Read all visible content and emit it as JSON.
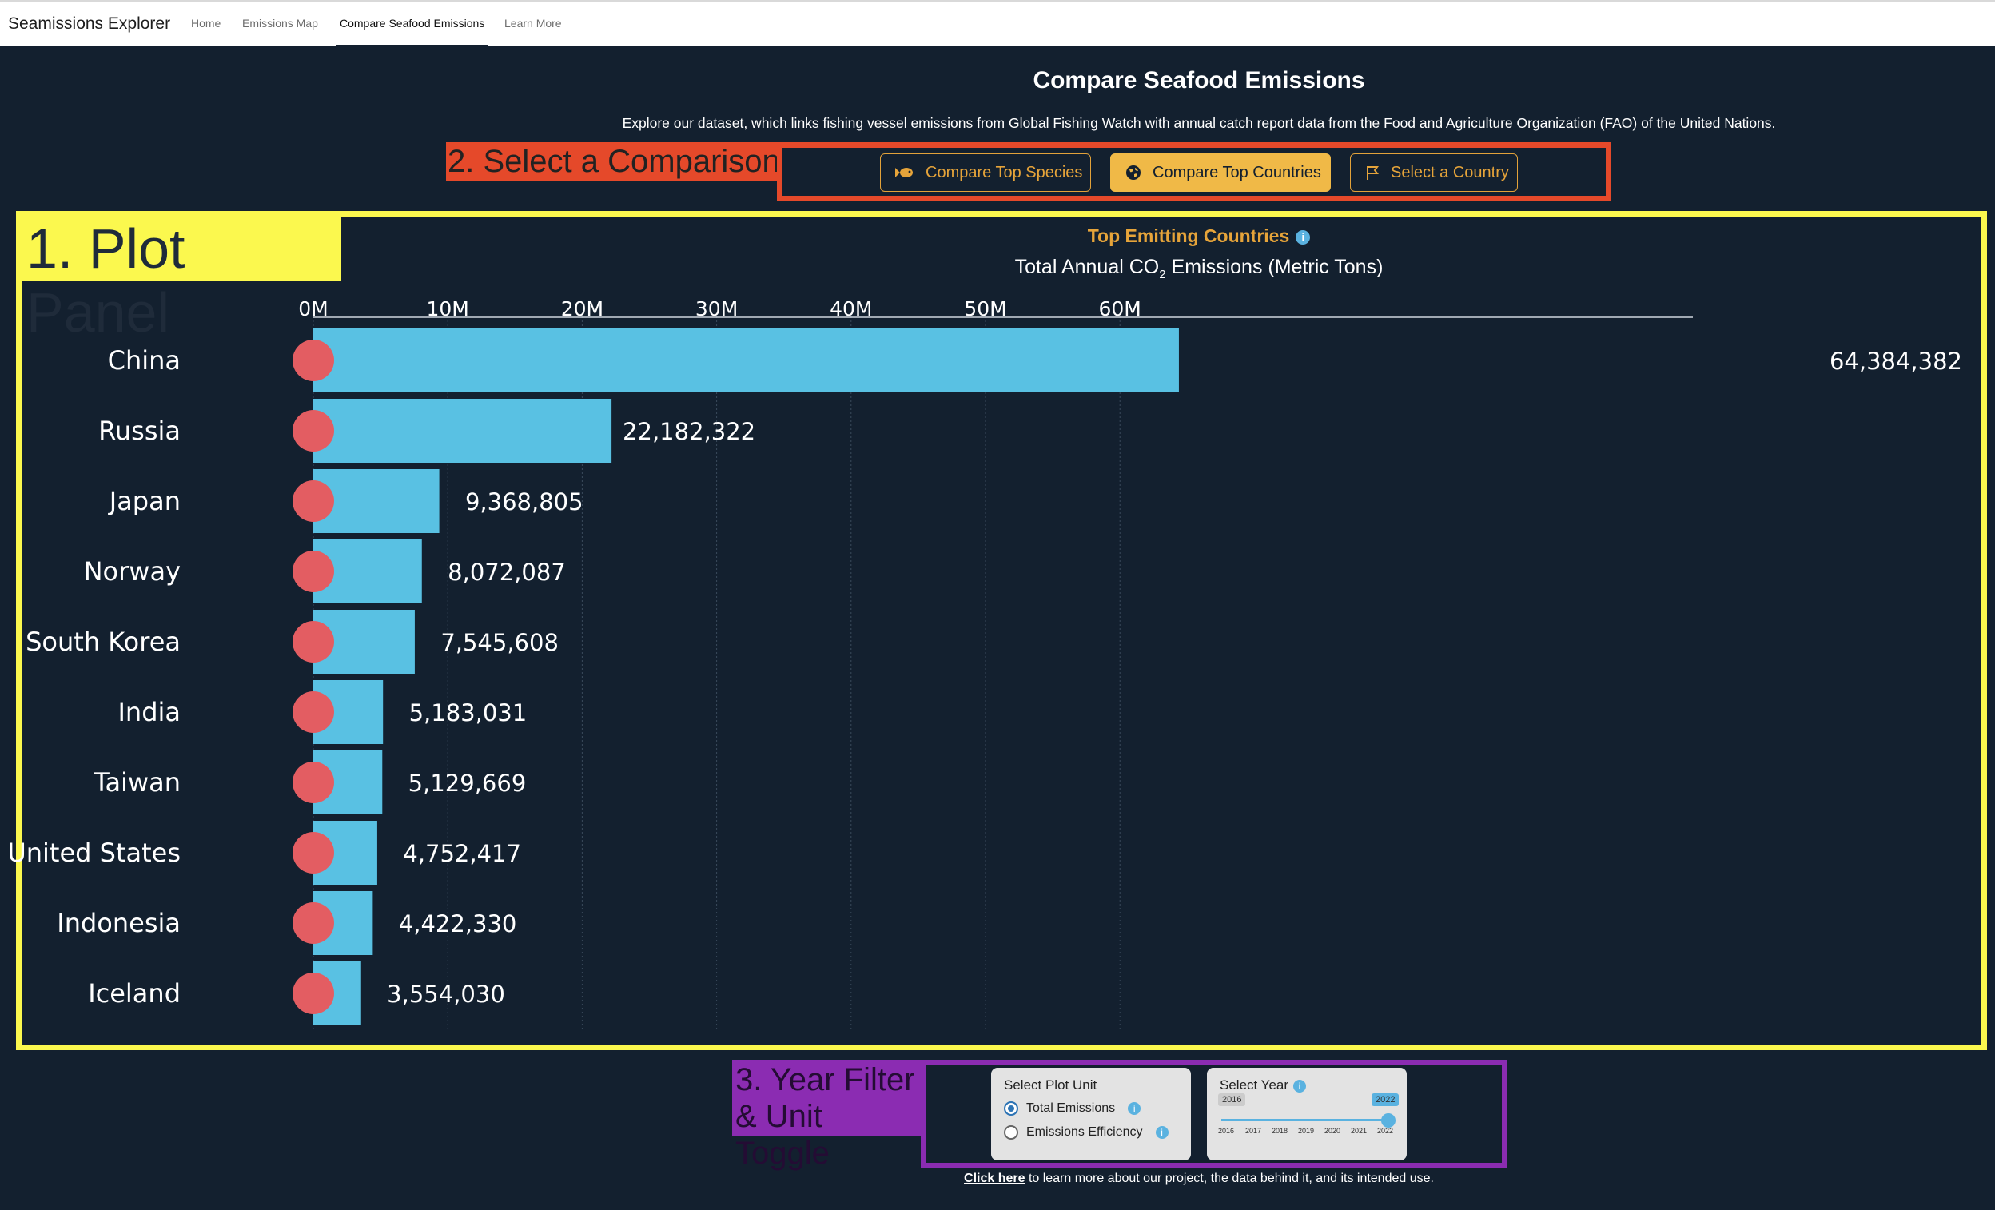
{
  "nav": {
    "brand": "Seamissions Explorer",
    "links": [
      "Home",
      "Emissions Map",
      "Compare Seafood Emissions",
      "Learn More"
    ],
    "active": "Compare Seafood Emissions"
  },
  "header": {
    "title": "Compare Seafood Emissions",
    "subtitle": "Explore our dataset, which links fishing vessel emissions from Global Fishing Watch with annual catch report data from the Food and Agriculture Organization (FAO) of the United Nations."
  },
  "annotations": {
    "plot_panel": "1. Plot Panel",
    "select_comparison": "2. Select a Comparison",
    "year_filter_line1": "3. Year Filter",
    "year_filter_line2": "& Unit Toggle"
  },
  "buttons": {
    "top_species": "Compare Top Species",
    "top_countries": "Compare Top Countries",
    "select_country": "Select a Country"
  },
  "chart": {
    "title": "Top Emitting Countries",
    "subtitle_pre": "Total Annual CO",
    "subtitle_sub": "2",
    "subtitle_post": " Emissions (Metric Tons)"
  },
  "chart_data": {
    "type": "bar",
    "orientation": "horizontal",
    "title": "Top Emitting Countries",
    "xlabel": "Total Annual CO2 Emissions (Metric Tons)",
    "xlim": [
      0,
      65000000
    ],
    "x_ticks": [
      0,
      10000000,
      20000000,
      30000000,
      40000000,
      50000000,
      60000000
    ],
    "x_tick_labels": [
      "0M",
      "10M",
      "20M",
      "30M",
      "40M",
      "50M",
      "60M"
    ],
    "grid": true,
    "bar_color": "#59c1e3",
    "categories": [
      "China",
      "Russia",
      "Japan",
      "Norway",
      "South Korea",
      "India",
      "Taiwan",
      "United States",
      "Indonesia",
      "Iceland"
    ],
    "values": [
      64384382,
      22182322,
      9368805,
      8072087,
      7545608,
      5183031,
      5129669,
      4752417,
      4422330,
      3554030
    ],
    "value_labels": [
      "64,384,382",
      "22,182,322",
      "9,368,805",
      "8,072,087",
      "7,545,608",
      "5,183,031",
      "5,129,669",
      "4,752,417",
      "4,422,330",
      "3,554,030"
    ]
  },
  "controls": {
    "plot_unit_title": "Select Plot Unit",
    "unit_options": [
      "Total Emissions",
      "Emissions Efficiency"
    ],
    "unit_selected": "Total Emissions",
    "year_title": "Select Year",
    "year_min": "2016",
    "year_max": "2022",
    "year_selected": "2022",
    "year_ticks": [
      "2016",
      "2017",
      "2018",
      "2019",
      "2020",
      "2021",
      "2022"
    ]
  },
  "footer": {
    "link_text": "Click here",
    "rest": " to learn more about our project, the data behind it, and its intended use."
  },
  "colors": {
    "background": "#13202f",
    "accent": "#f0b947",
    "bar": "#59c1e3",
    "annotation_yellow": "#fbf84e",
    "annotation_red": "#e5492a",
    "annotation_purple": "#8b2cb2"
  }
}
